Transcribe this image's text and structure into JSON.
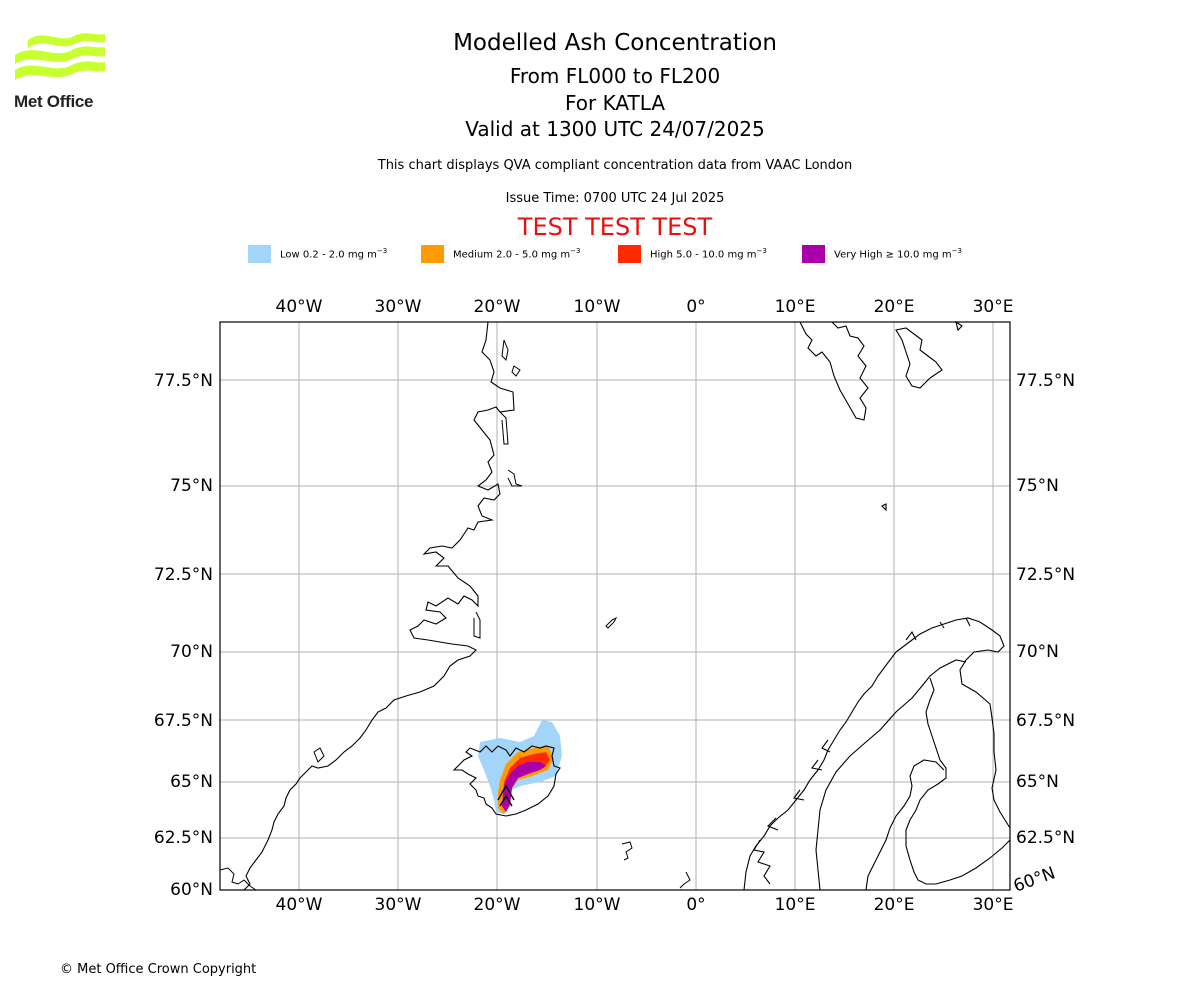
{
  "header": {
    "logo_text": "Met Office",
    "title": "Modelled Ash Concentration",
    "line2": "From FL000 to FL200",
    "line3": "For KATLA",
    "line4": "Valid at 1300 UTC 24/07/2025",
    "description": "This chart displays QVA compliant concentration data from VAAC London",
    "issue_time": "Issue Time: 0700 UTC 24 Jul 2025",
    "test_banner": "TEST TEST TEST"
  },
  "legend": [
    {
      "label": "Low 0.2 - 2.0 mg m",
      "exp": "−3",
      "color": "#a3d4fa"
    },
    {
      "label": "Medium 2.0 - 5.0 mg m",
      "exp": "−3",
      "color": "#ff9a00"
    },
    {
      "label": "High 5.0 - 10.0 mg m",
      "exp": "−3",
      "color": "#ff2a00"
    },
    {
      "label": "Very High  ≥  10.0 mg m",
      "exp": "−3",
      "color": "#aa00aa"
    }
  ],
  "colors": {
    "test_text": "#e8100e",
    "logo_green": "#c8ff2e",
    "grid": "#b0b0b0"
  },
  "map": {
    "lon_labels": [
      "40°W",
      "30°W",
      "20°W",
      "10°W",
      "0°",
      "10°E",
      "20°E",
      "30°E"
    ],
    "lat_labels": [
      "77.5°N",
      "75°N",
      "72.5°N",
      "70°N",
      "67.5°N",
      "65°N",
      "62.5°N",
      "60°N"
    ],
    "corner_label": "60°N"
  },
  "footer": {
    "copyright": "© Met Office Crown Copyright"
  }
}
